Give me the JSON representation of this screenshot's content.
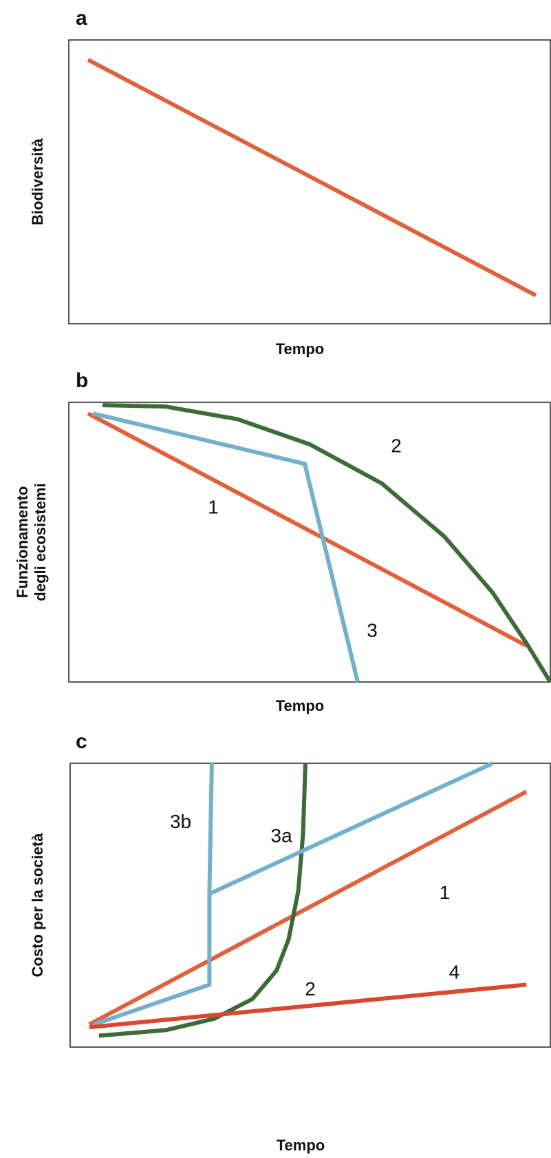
{
  "colors": {
    "orange": "#e0623d",
    "red": "#d9472e",
    "blue": "#72b0cc",
    "green": "#3c6b36"
  },
  "chart_data": [
    {
      "type": "line",
      "panel": "a",
      "xlabel": "Tempo",
      "ylabel": "Biodiversità",
      "xlim": [
        0,
        100
      ],
      "ylim": [
        0,
        100
      ],
      "grid": false,
      "series": [
        {
          "color": "orange",
          "points": [
            [
              4,
              93
            ],
            [
              97,
              10
            ]
          ]
        }
      ]
    },
    {
      "type": "line",
      "panel": "b",
      "xlabel": "Tempo",
      "ylabel": [
        "Funzionamento",
        "degli ecosistemi"
      ],
      "xlim": [
        0,
        100
      ],
      "ylim": [
        0,
        100
      ],
      "grid": false,
      "series": [
        {
          "name": "1",
          "color": "orange",
          "points": [
            [
              4,
              96
            ],
            [
              95,
              13
            ]
          ],
          "label_at": [
            30,
            62
          ]
        },
        {
          "name": "2",
          "color": "green",
          "points": [
            [
              7,
              99
            ],
            [
              20,
              98.5
            ],
            [
              35,
              94
            ],
            [
              50,
              85
            ],
            [
              65,
              71
            ],
            [
              78,
              52
            ],
            [
              88,
              32
            ],
            [
              95,
              14
            ],
            [
              100,
              0
            ]
          ],
          "label_at": [
            68,
            84
          ]
        },
        {
          "name": "3",
          "color": "blue",
          "points": [
            [
              5,
              96
            ],
            [
              49,
              78
            ],
            [
              60,
              0
            ]
          ],
          "label_at": [
            63,
            18
          ]
        }
      ]
    },
    {
      "type": "line",
      "panel": "c",
      "xlabel": "Tempo",
      "ylabel": "Costo per la società",
      "xlim": [
        0,
        100
      ],
      "ylim": [
        0,
        100
      ],
      "grid": false,
      "series": [
        {
          "name": "1",
          "color": "orange",
          "points": [
            [
              4,
              8
            ],
            [
              95,
              90
            ]
          ],
          "label_at": [
            78,
            54
          ]
        },
        {
          "name": "2",
          "color": "green",
          "points": [
            [
              6,
              4
            ],
            [
              20,
              6
            ],
            [
              30,
              10
            ],
            [
              38,
              17
            ],
            [
              43,
              27
            ],
            [
              45.5,
              38
            ],
            [
              47.5,
              55
            ],
            [
              48.5,
              75
            ],
            [
              49,
              100
            ]
          ],
          "label_at": [
            50,
            20
          ]
        },
        {
          "name": "3a",
          "color": "blue",
          "points": [
            [
              29,
              54
            ],
            [
              88,
              100
            ]
          ],
          "label_at": [
            44,
            74
          ]
        },
        {
          "name": "3b",
          "color": "blue",
          "points": [
            [
              29,
              54
            ],
            [
              29.5,
              100
            ]
          ],
          "label_at": [
            23,
            79
          ]
        },
        {
          "name": "",
          "color": "blue",
          "points": [
            [
              5,
              8
            ],
            [
              29,
              22
            ],
            [
              29,
              54
            ]
          ]
        },
        {
          "name": "4",
          "color": "red",
          "points": [
            [
              4,
              7
            ],
            [
              95,
              22
            ]
          ],
          "label_at": [
            80,
            26
          ]
        }
      ]
    }
  ]
}
